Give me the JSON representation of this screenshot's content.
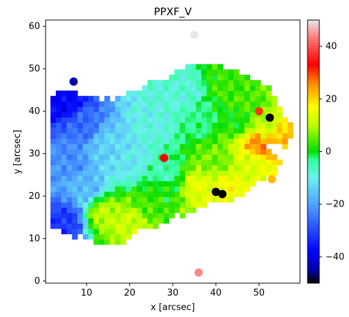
{
  "chart_data": {
    "type": "heatmap",
    "title": "PPXF_V",
    "xlabel": "x [arcsec]",
    "ylabel": "y [arcsec]",
    "xlim": [
      0.5,
      59.5
    ],
    "ylim": [
      -0.5,
      61.5
    ],
    "x_ticks": [
      10,
      20,
      30,
      40,
      50
    ],
    "y_ticks": [
      0,
      10,
      20,
      30,
      40,
      50,
      60
    ],
    "colorbar": {
      "range": [
        -50,
        50
      ],
      "ticks": [
        40,
        20,
        0,
        -20,
        -40
      ],
      "tick_labels": [
        "40",
        "20",
        "0",
        "−20",
        "−40"
      ],
      "colormap_stops": [
        {
          "value": -50,
          "color": "#000000"
        },
        {
          "value": -45,
          "color": "#0000aa"
        },
        {
          "value": -38,
          "color": "#0000ff"
        },
        {
          "value": -20,
          "color": "#4fa3ff"
        },
        {
          "value": -10,
          "color": "#6cf0f0"
        },
        {
          "value": -3,
          "color": "#33ff99"
        },
        {
          "value": 0,
          "color": "#00dd00"
        },
        {
          "value": 10,
          "color": "#bbff00"
        },
        {
          "value": 17,
          "color": "#ffff00"
        },
        {
          "value": 26,
          "color": "#ff8800"
        },
        {
          "value": 33,
          "color": "#ff0000"
        },
        {
          "value": 43,
          "color": "#ff7777"
        },
        {
          "value": 50,
          "color": "#e8e8e8"
        }
      ]
    },
    "velocity_field": {
      "description_of_regions": [
        {
          "x": 5,
          "y": 42,
          "value": -38
        },
        {
          "x": 9,
          "y": 37,
          "value": -26
        },
        {
          "x": 6,
          "y": 28,
          "value": -22
        },
        {
          "x": 10,
          "y": 22,
          "value": -17
        },
        {
          "x": 5,
          "y": 14,
          "value": -32
        },
        {
          "x": 15,
          "y": 32,
          "value": -14
        },
        {
          "x": 20,
          "y": 28,
          "value": -11
        },
        {
          "x": 26,
          "y": 38,
          "value": -9
        },
        {
          "x": 33,
          "y": 44,
          "value": -8
        },
        {
          "x": 28,
          "y": 25,
          "value": -5
        },
        {
          "x": 36,
          "y": 38,
          "value": -3
        },
        {
          "x": 42,
          "y": 46,
          "value": 3
        },
        {
          "x": 45,
          "y": 38,
          "value": 1
        },
        {
          "x": 40,
          "y": 28,
          "value": 6
        },
        {
          "x": 36,
          "y": 22,
          "value": 14
        },
        {
          "x": 48,
          "y": 28,
          "value": 13
        },
        {
          "x": 42,
          "y": 22,
          "value": 16
        },
        {
          "x": 48,
          "y": 42,
          "value": 4
        },
        {
          "x": 52,
          "y": 36,
          "value": 12
        },
        {
          "x": 55,
          "y": 34,
          "value": 22
        },
        {
          "x": 50,
          "y": 32,
          "value": 26
        },
        {
          "x": 14,
          "y": 16,
          "value": 10
        },
        {
          "x": 20,
          "y": 14,
          "value": 12
        },
        {
          "x": 24,
          "y": 18,
          "value": 4
        },
        {
          "x": 28,
          "y": 22,
          "value": 1
        }
      ],
      "extreme_points": [
        {
          "x": 40,
          "y": 21,
          "value": -50
        },
        {
          "x": 41.5,
          "y": 20.5,
          "value": -50
        },
        {
          "x": 52.5,
          "y": 38.5,
          "value": -50
        },
        {
          "x": 28,
          "y": 29,
          "value": 33
        },
        {
          "x": 50,
          "y": 40,
          "value": 30
        },
        {
          "x": 53,
          "y": 24,
          "value": 22
        },
        {
          "x": 35,
          "y": 58,
          "value": 50
        },
        {
          "x": 36,
          "y": 2,
          "value": 44
        },
        {
          "x": 7,
          "y": 47,
          "value": -45
        }
      ]
    }
  }
}
